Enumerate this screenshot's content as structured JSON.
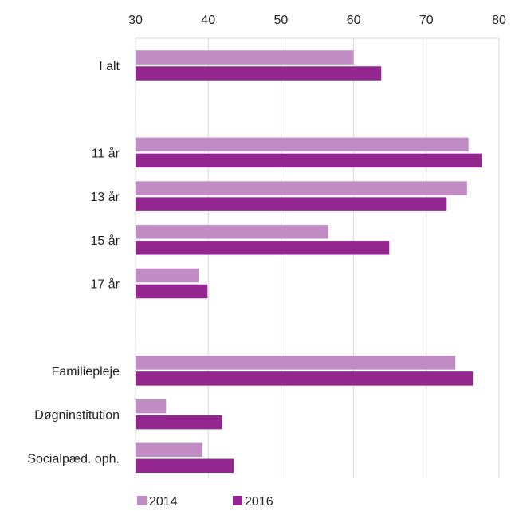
{
  "chart_data": {
    "type": "bar",
    "orientation": "horizontal",
    "categories": [
      "I alt",
      "",
      "11 år",
      "13 år",
      "15 år",
      "17 år",
      "",
      "Familiepleje",
      "Døgninstitution",
      "Socialpæd. oph."
    ],
    "series": [
      {
        "name": "2014",
        "color": "#c08cc3",
        "values": [
          60,
          null,
          75.8,
          75.6,
          56.5,
          38.7,
          null,
          74,
          34.2,
          39.2
        ]
      },
      {
        "name": "2016",
        "color": "#93268f",
        "values": [
          63.8,
          null,
          77.6,
          72.8,
          64.9,
          39.9,
          null,
          76.4,
          41.9,
          43.5
        ]
      }
    ],
    "xlim": [
      30,
      80
    ],
    "xticks": [
      30,
      40,
      50,
      60,
      70,
      80
    ],
    "x_axis_position": "top",
    "grid": "vertical",
    "legend_position": "bottom-left",
    "title": "",
    "xlabel": "",
    "ylabel": ""
  }
}
